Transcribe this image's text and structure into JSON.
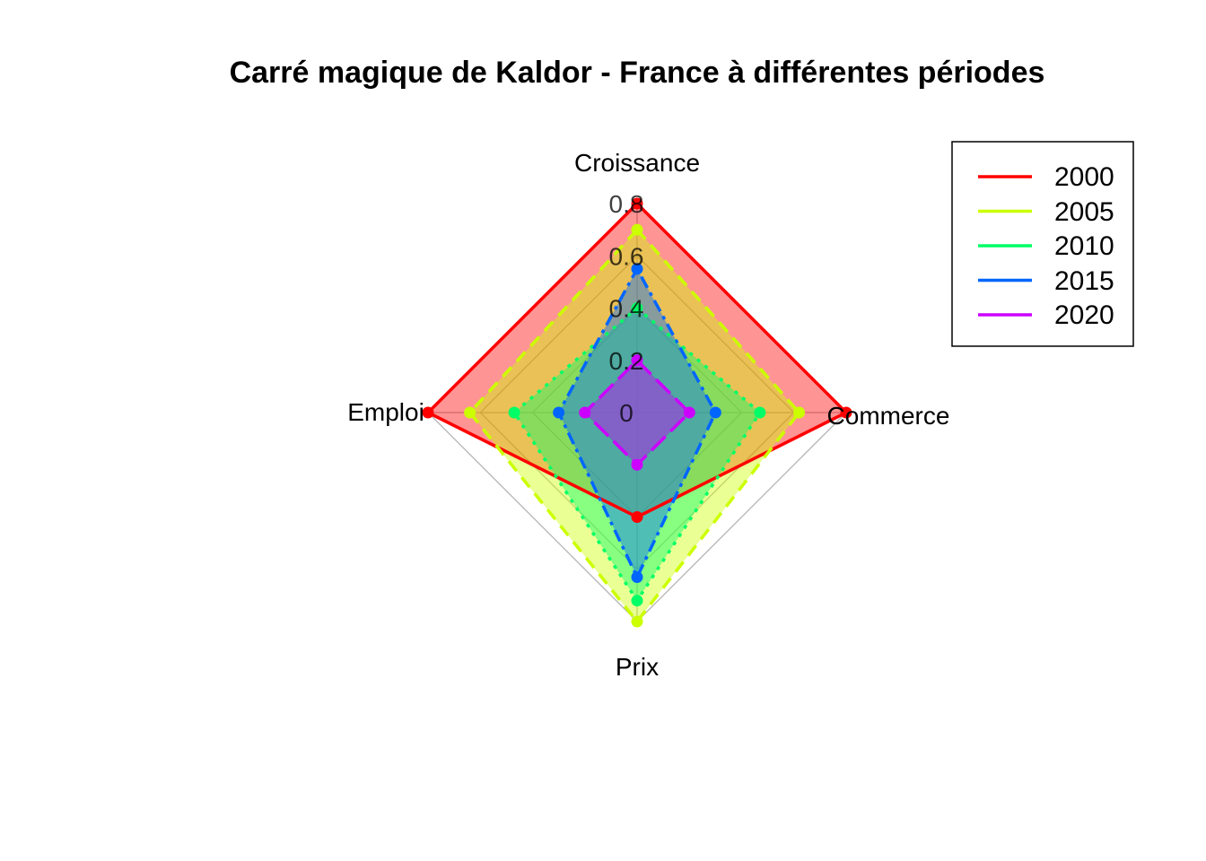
{
  "chart_data": {
    "type": "radar",
    "title": "Carré magique de Kaldor - France à différentes périodes",
    "axes": [
      "Croissance",
      "Commerce",
      "Prix",
      "Emploi"
    ],
    "ticks": [
      "0",
      "0.2",
      "0.4",
      "0.6",
      "0.8"
    ],
    "range": [
      0,
      0.8
    ],
    "legend_position": "top-right",
    "series": [
      {
        "name": "2000",
        "color": "#FF0000",
        "fill": "#FF0000",
        "dash": "solid",
        "values": [
          0.8,
          0.8,
          0.4,
          0.8
        ]
      },
      {
        "name": "2005",
        "color": "#CCFF00",
        "fill": "#CCFF00",
        "dash": "dashed",
        "values": [
          0.7,
          0.62,
          0.8,
          0.64
        ]
      },
      {
        "name": "2010",
        "color": "#00FF66",
        "fill": "#00FF66",
        "dash": "dotted",
        "values": [
          0.4,
          0.47,
          0.72,
          0.47
        ]
      },
      {
        "name": "2015",
        "color": "#0066FF",
        "fill": "#0066FF",
        "dash": "dotdash",
        "values": [
          0.55,
          0.3,
          0.63,
          0.3
        ]
      },
      {
        "name": "2020",
        "color": "#CC00FF",
        "fill": "#CC00FF",
        "dash": "longdash",
        "values": [
          0.2,
          0.2,
          0.2,
          0.2
        ]
      }
    ]
  }
}
